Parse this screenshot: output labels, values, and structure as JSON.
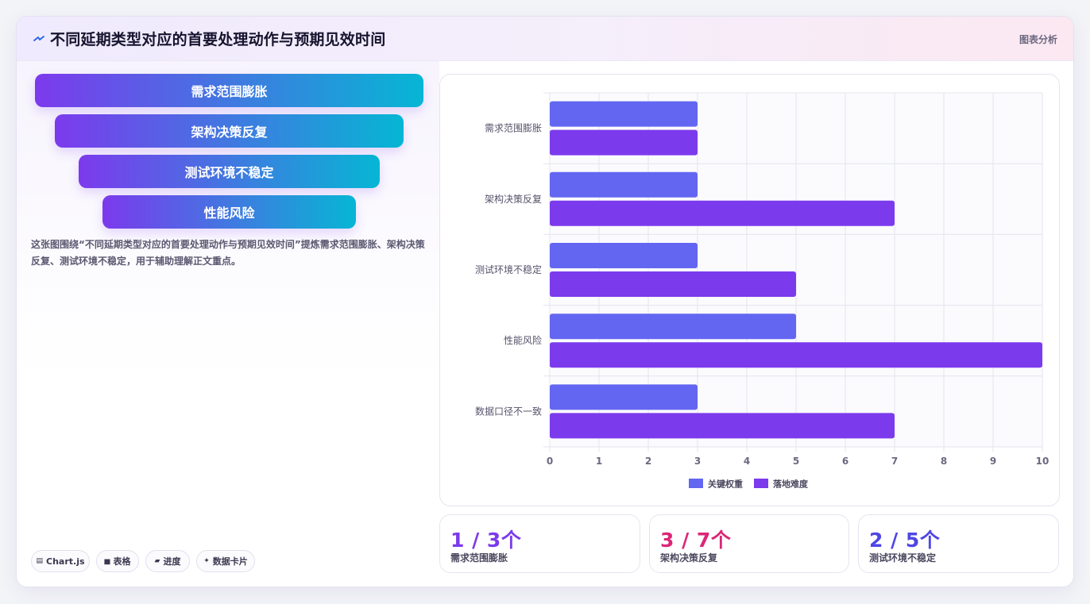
{
  "header": {
    "title": "不同延期类型对应的首要处理动作与预期见效时间",
    "tag": "图表分析"
  },
  "funnel": [
    {
      "label": "需求范围膨胀"
    },
    {
      "label": "架构决策反复"
    },
    {
      "label": "测试环境不稳定"
    },
    {
      "label": "性能风险"
    }
  ],
  "description": "这张图围绕“不同延期类型对应的首要处理动作与预期见效时间”提炼需求范围膨胀、架构决策反复、测试环境不稳定，用于辅助理解正文重点。",
  "chips": [
    {
      "icon": "chart-icon",
      "label": "Chart.js"
    },
    {
      "icon": "table-icon",
      "label": "表格"
    },
    {
      "icon": "progress-icon",
      "label": "进度"
    },
    {
      "icon": "sparkle-icon",
      "label": "数据卡片"
    }
  ],
  "chart_data": {
    "type": "bar",
    "orientation": "horizontal",
    "categories": [
      "需求范围膨胀",
      "架构决策反复",
      "测试环境不稳定",
      "性能风险",
      "数据口径不一致"
    ],
    "series": [
      {
        "name": "关键权重",
        "color": "#6366f1",
        "values": [
          3,
          3,
          3,
          5,
          3
        ]
      },
      {
        "name": "落地难度",
        "color": "#7c3aed",
        "values": [
          3,
          7,
          5,
          10,
          7
        ]
      }
    ],
    "xlim": [
      0,
      10
    ],
    "xticks": [
      "0",
      "1",
      "2",
      "3",
      "4",
      "5",
      "6",
      "7",
      "8",
      "9",
      "10"
    ],
    "grid": true,
    "legend": "bottom"
  },
  "stats": [
    {
      "value": "1 / 3个",
      "label": "需求范围膨胀",
      "color": "#7c3aed"
    },
    {
      "value": "3 / 7个",
      "label": "架构决策反复",
      "color": "#db2777"
    },
    {
      "value": "2 / 5个",
      "label": "测试环境不稳定",
      "color": "#4f46e5"
    }
  ]
}
